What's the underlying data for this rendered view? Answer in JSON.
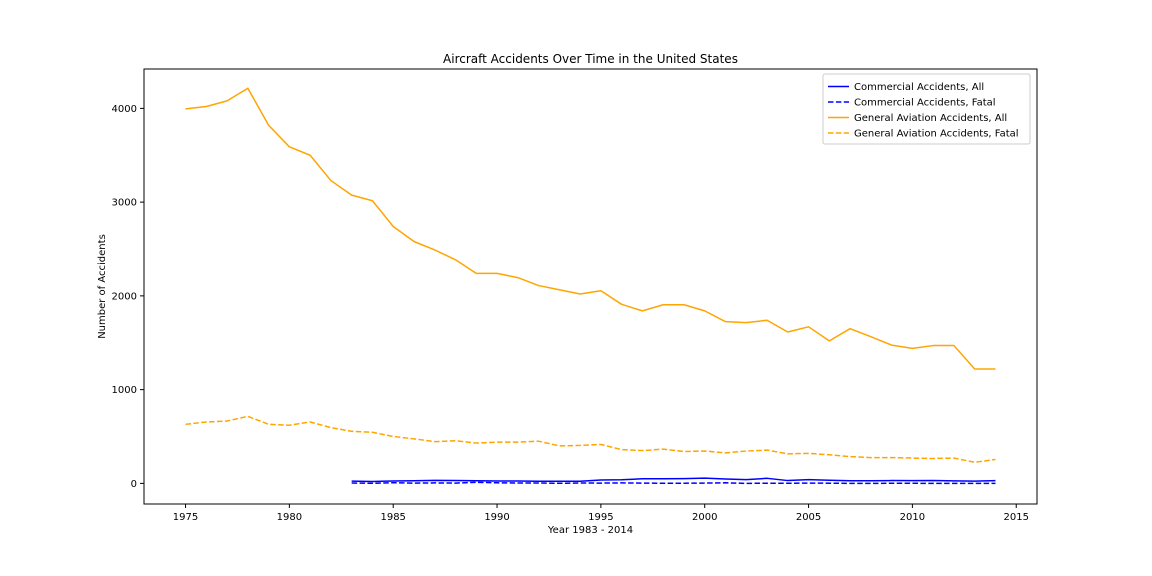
{
  "chart_data": {
    "type": "line",
    "title": "Aircraft Accidents Over Time in the United States",
    "xlabel": "Year 1983 - 2014",
    "ylabel": "Number of Accidents",
    "xlim": [
      1973,
      2016
    ],
    "ylim": [
      -220,
      4420
    ],
    "xticks": [
      1975,
      1980,
      1985,
      1990,
      1995,
      2000,
      2005,
      2010,
      2015
    ],
    "yticks": [
      0,
      1000,
      2000,
      3000,
      4000
    ],
    "grid": false,
    "legend_position": "top-right",
    "series": [
      {
        "name": "Commercial Accidents, All",
        "color": "#0000ff",
        "style": "solid",
        "x": [
          1983,
          1984,
          1985,
          1986,
          1987,
          1988,
          1989,
          1990,
          1991,
          1992,
          1993,
          1994,
          1995,
          1996,
          1997,
          1998,
          1999,
          2000,
          2001,
          2002,
          2003,
          2004,
          2005,
          2006,
          2007,
          2008,
          2009,
          2010,
          2011,
          2012,
          2013,
          2014
        ],
        "y": [
          24,
          20,
          25,
          28,
          32,
          30,
          28,
          26,
          26,
          22,
          22,
          23,
          36,
          38,
          49,
          50,
          51,
          56,
          46,
          40,
          54,
          30,
          40,
          33,
          28,
          28,
          30,
          29,
          31,
          27,
          24,
          29
        ]
      },
      {
        "name": "Commercial Accidents, Fatal",
        "color": "#0000ff",
        "style": "dashed",
        "x": [
          1983,
          1984,
          1985,
          1986,
          1987,
          1988,
          1989,
          1990,
          1991,
          1992,
          1993,
          1994,
          1995,
          1996,
          1997,
          1998,
          1999,
          2000,
          2001,
          2002,
          2003,
          2004,
          2005,
          2006,
          2007,
          2008,
          2009,
          2010,
          2011,
          2012,
          2013,
          2014
        ],
        "y": [
          4,
          1,
          7,
          3,
          5,
          3,
          11,
          6,
          4,
          4,
          1,
          4,
          3,
          5,
          3,
          1,
          2,
          3,
          6,
          0,
          2,
          1,
          3,
          2,
          0,
          0,
          1,
          1,
          0,
          0,
          0,
          0
        ]
      },
      {
        "name": "General Aviation Accidents, All",
        "color": "#ffa500",
        "style": "solid",
        "x": [
          1975,
          1976,
          1977,
          1978,
          1979,
          1980,
          1981,
          1982,
          1983,
          1984,
          1985,
          1986,
          1987,
          1988,
          1989,
          1990,
          1991,
          1992,
          1993,
          1994,
          1995,
          1996,
          1997,
          1998,
          1999,
          2000,
          2001,
          2002,
          2003,
          2004,
          2005,
          2006,
          2007,
          2008,
          2009,
          2010,
          2011,
          2012,
          2013,
          2014
        ],
        "y": [
          3995,
          4020,
          4080,
          4215,
          3820,
          3590,
          3500,
          3230,
          3075,
          3015,
          2740,
          2580,
          2490,
          2385,
          2240,
          2240,
          2195,
          2110,
          2065,
          2020,
          2055,
          1910,
          1840,
          1905,
          1905,
          1840,
          1725,
          1715,
          1740,
          1615,
          1670,
          1520,
          1650,
          1565,
          1475,
          1440,
          1470,
          1470,
          1220,
          1220
        ]
      },
      {
        "name": "General Aviation Accidents, Fatal",
        "color": "#ffa500",
        "style": "dashed",
        "x": [
          1975,
          1976,
          1977,
          1978,
          1979,
          1980,
          1981,
          1982,
          1983,
          1984,
          1985,
          1986,
          1987,
          1988,
          1989,
          1990,
          1991,
          1992,
          1993,
          1994,
          1995,
          1996,
          1997,
          1998,
          1999,
          2000,
          2001,
          2002,
          2003,
          2004,
          2005,
          2006,
          2007,
          2008,
          2009,
          2010,
          2011,
          2012,
          2013,
          2014
        ],
        "y": [
          630,
          655,
          665,
          715,
          630,
          620,
          655,
          595,
          555,
          545,
          500,
          475,
          445,
          455,
          430,
          440,
          440,
          450,
          400,
          405,
          415,
          360,
          350,
          365,
          340,
          345,
          325,
          345,
          355,
          315,
          320,
          305,
          285,
          275,
          275,
          270,
          265,
          270,
          225,
          255
        ]
      }
    ]
  }
}
